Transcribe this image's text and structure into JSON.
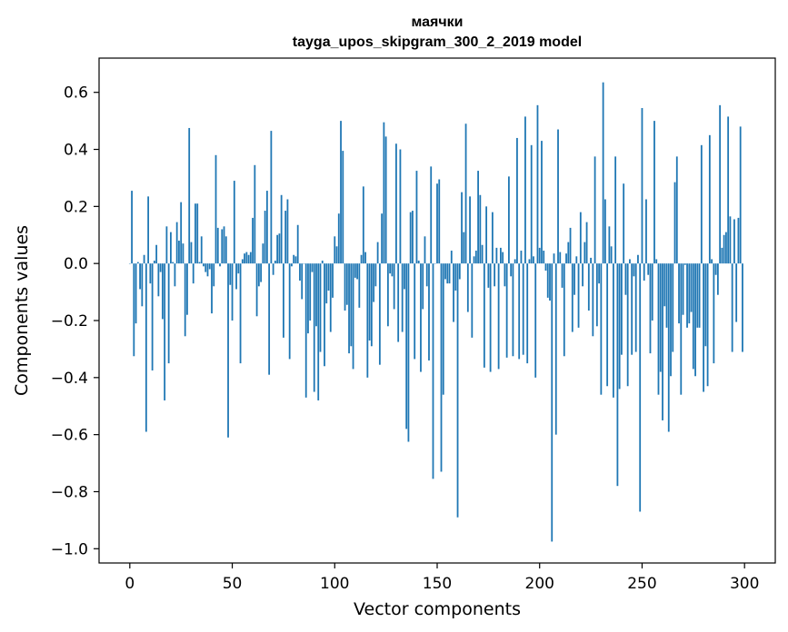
{
  "chart_data": {
    "type": "bar",
    "title": "маячки",
    "subtitle": "tayga_upos_skipgram_300_2_2019 model",
    "xlabel": "Vector components",
    "ylabel": "Components values",
    "xlim": [
      -15,
      315
    ],
    "ylim": [
      -1.05,
      0.72
    ],
    "xticks": [
      0,
      50,
      100,
      150,
      200,
      250,
      300
    ],
    "xtick_labels": [
      "0",
      "50",
      "100",
      "150",
      "200",
      "250",
      "300"
    ],
    "yticks": [
      0.6,
      0.4,
      0.2,
      0.0,
      -0.2,
      -0.4,
      -0.6,
      -0.8,
      -1.0
    ],
    "ytick_labels": [
      "0.6",
      "0.4",
      "0.2",
      "0.0",
      "−0.2",
      "−0.4",
      "−0.6",
      "−0.8",
      "−1.0"
    ],
    "bar_color": "#1f77b4",
    "grid": false,
    "x": [
      0,
      1,
      2,
      3,
      4,
      5,
      6,
      7,
      8,
      9,
      10,
      11,
      12,
      13,
      14,
      15,
      16,
      17,
      18,
      19,
      20,
      21,
      22,
      23,
      24,
      25,
      26,
      27,
      28,
      29,
      30,
      31,
      32,
      33,
      34,
      35,
      36,
      37,
      38,
      39,
      40,
      41,
      42,
      43,
      44,
      45,
      46,
      47,
      48,
      49,
      50,
      51,
      52,
      53,
      54,
      55,
      56,
      57,
      58,
      59,
      60,
      61,
      62,
      63,
      64,
      65,
      66,
      67,
      68,
      69,
      70,
      71,
      72,
      73,
      74,
      75,
      76,
      77,
      78,
      79,
      80,
      81,
      82,
      83,
      84,
      85,
      86,
      87,
      88,
      89,
      90,
      91,
      92,
      93,
      94,
      95,
      96,
      97,
      98,
      99,
      100,
      101,
      102,
      103,
      104,
      105,
      106,
      107,
      108,
      109,
      110,
      111,
      112,
      113,
      114,
      115,
      116,
      117,
      118,
      119,
      120,
      121,
      122,
      123,
      124,
      125,
      126,
      127,
      128,
      129,
      130,
      131,
      132,
      133,
      134,
      135,
      136,
      137,
      138,
      139,
      140,
      141,
      142,
      143,
      144,
      145,
      146,
      147,
      148,
      149,
      150,
      151,
      152,
      153,
      154,
      155,
      156,
      157,
      158,
      159,
      160,
      161,
      162,
      163,
      164,
      165,
      166,
      167,
      168,
      169,
      170,
      171,
      172,
      173,
      174,
      175,
      176,
      177,
      178,
      179,
      180,
      181,
      182,
      183,
      184,
      185,
      186,
      187,
      188,
      189,
      190,
      191,
      192,
      193,
      194,
      195,
      196,
      197,
      198,
      199,
      200,
      201,
      202,
      203,
      204,
      205,
      206,
      207,
      208,
      209,
      210,
      211,
      212,
      213,
      214,
      215,
      216,
      217,
      218,
      219,
      220,
      221,
      222,
      223,
      224,
      225,
      226,
      227,
      228,
      229,
      230,
      231,
      232,
      233,
      234,
      235,
      236,
      237,
      238,
      239,
      240,
      241,
      242,
      243,
      244,
      245,
      246,
      247,
      248,
      249,
      250,
      251,
      252,
      253,
      254,
      255,
      256,
      257,
      258,
      259,
      260,
      261,
      262,
      263,
      264,
      265,
      266,
      267,
      268,
      269,
      270,
      271,
      272,
      273,
      274,
      275,
      276,
      277,
      278,
      279,
      280,
      281,
      282,
      283,
      284,
      285,
      286,
      287,
      288,
      289,
      290,
      291,
      292,
      293,
      294,
      295,
      296,
      297,
      298,
      299
    ],
    "values": [
      0.0,
      0.255,
      -0.325,
      -0.21,
      0.005,
      -0.09,
      -0.15,
      0.03,
      -0.59,
      0.235,
      -0.07,
      -0.375,
      0.01,
      0.065,
      -0.115,
      -0.03,
      -0.195,
      -0.48,
      0.13,
      -0.35,
      0.11,
      0.005,
      -0.08,
      0.145,
      0.08,
      0.215,
      0.07,
      -0.255,
      -0.18,
      0.475,
      0.075,
      -0.07,
      0.21,
      0.21,
      0.005,
      0.095,
      -0.01,
      -0.03,
      -0.045,
      -0.02,
      -0.175,
      -0.08,
      0.38,
      0.125,
      -0.01,
      0.12,
      0.13,
      0.095,
      -0.61,
      -0.075,
      -0.2,
      0.29,
      -0.09,
      -0.035,
      -0.35,
      0.015,
      0.035,
      0.04,
      0.03,
      0.04,
      0.16,
      0.345,
      -0.185,
      -0.08,
      -0.065,
      0.07,
      0.185,
      0.255,
      -0.39,
      0.465,
      -0.04,
      0.01,
      0.1,
      0.105,
      0.24,
      -0.26,
      0.185,
      0.225,
      -0.335,
      -0.01,
      0.03,
      0.025,
      0.135,
      -0.06,
      -0.125,
      0.0,
      -0.47,
      -0.245,
      -0.2,
      -0.03,
      -0.45,
      -0.22,
      -0.48,
      -0.31,
      0.01,
      -0.36,
      -0.14,
      -0.095,
      -0.24,
      -0.12,
      0.095,
      0.06,
      0.175,
      0.5,
      0.395,
      -0.165,
      -0.145,
      -0.315,
      -0.29,
      -0.37,
      -0.05,
      -0.055,
      -0.155,
      0.03,
      0.27,
      0.04,
      -0.4,
      -0.27,
      -0.29,
      -0.135,
      -0.08,
      0.075,
      -0.355,
      0.175,
      0.495,
      0.445,
      -0.22,
      -0.035,
      -0.045,
      -0.16,
      0.42,
      -0.275,
      0.4,
      -0.24,
      -0.09,
      -0.58,
      -0.625,
      0.18,
      0.185,
      -0.335,
      0.325,
      0.01,
      -0.38,
      -0.16,
      0.095,
      -0.08,
      -0.34,
      0.34,
      -0.755,
      0.0,
      0.28,
      0.295,
      -0.73,
      -0.46,
      -0.055,
      -0.07,
      -0.07,
      0.045,
      -0.205,
      -0.095,
      -0.89,
      -0.055,
      0.25,
      0.11,
      0.49,
      -0.17,
      0.235,
      -0.26,
      0.025,
      0.045,
      0.325,
      0.24,
      0.065,
      -0.365,
      0.2,
      -0.085,
      -0.38,
      0.18,
      -0.08,
      0.055,
      -0.37,
      0.055,
      0.04,
      -0.08,
      -0.33,
      0.305,
      -0.045,
      -0.325,
      0.015,
      0.44,
      -0.335,
      0.045,
      -0.32,
      0.515,
      -0.35,
      0.015,
      0.415,
      0.025,
      -0.4,
      0.555,
      0.055,
      0.43,
      0.045,
      -0.025,
      -0.12,
      -0.13,
      -0.975,
      0.035,
      -0.6,
      0.47,
      0.04,
      -0.085,
      -0.325,
      0.035,
      0.075,
      0.125,
      -0.24,
      -0.11,
      0.025,
      -0.225,
      0.18,
      -0.08,
      0.075,
      0.145,
      -0.165,
      0.02,
      -0.255,
      0.375,
      -0.22,
      -0.07,
      -0.46,
      0.635,
      0.225,
      -0.43,
      0.13,
      0.06,
      -0.47,
      0.375,
      -0.78,
      -0.44,
      -0.32,
      0.28,
      -0.11,
      -0.43,
      0.015,
      -0.32,
      -0.045,
      -0.31,
      0.03,
      -0.87,
      0.545,
      -0.06,
      0.225,
      -0.04,
      -0.315,
      -0.2,
      0.5,
      0.015,
      -0.46,
      -0.38,
      -0.55,
      -0.15,
      -0.225,
      -0.59,
      -0.395,
      -0.31,
      0.285,
      0.375,
      -0.21,
      -0.46,
      -0.18,
      -0.005,
      -0.225,
      -0.21,
      -0.17,
      -0.37,
      -0.395,
      -0.225,
      -0.225,
      0.415,
      -0.45,
      -0.29,
      -0.43,
      0.45,
      0.015,
      -0.35,
      -0.04,
      -0.11,
      0.555,
      0.055,
      0.1,
      0.11,
      0.515,
      0.165,
      -0.31,
      0.155,
      -0.205,
      0.16,
      0.48,
      -0.31
    ]
  }
}
